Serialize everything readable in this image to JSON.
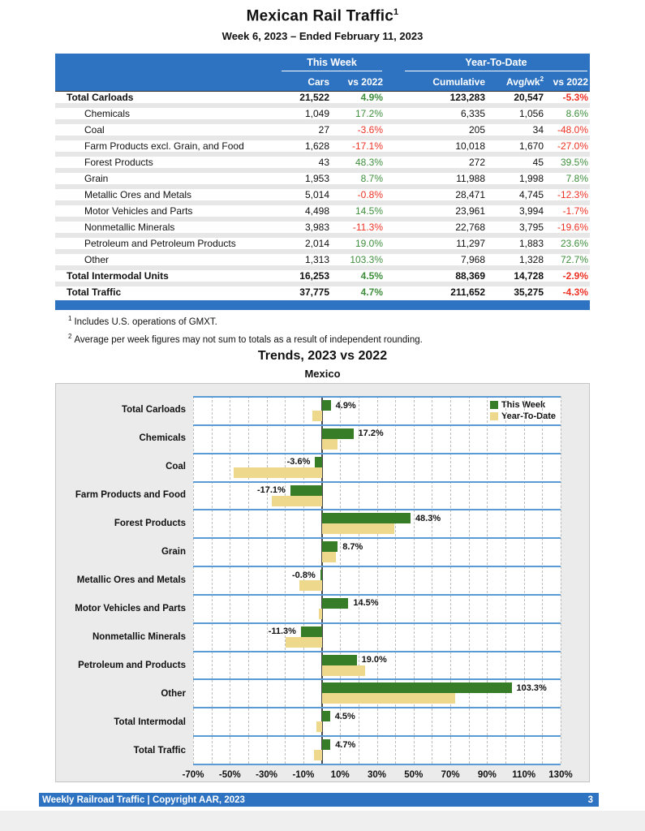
{
  "header": {
    "title": "Mexican Rail Traffic",
    "title_sup": "1",
    "subtitle": "Week 6, 2023 – Ended February 11, 2023"
  },
  "table": {
    "group_headers": {
      "this_week": "This Week",
      "ytd": "Year-To-Date"
    },
    "columns": {
      "cars": "Cars",
      "tw_vs": "vs 2022",
      "cumulative": "Cumulative",
      "avgwk": "Avg/wk",
      "avgwk_sup": "2",
      "ytd_vs": "vs 2022"
    },
    "rows": [
      {
        "label": "Total Carloads",
        "bold": true,
        "indent": false,
        "cars": "21,522",
        "tw_pct": "4.9%",
        "cumulative": "123,283",
        "avgwk": "20,547",
        "ytd_pct": "-5.3%"
      },
      {
        "label": "Chemicals",
        "bold": false,
        "indent": true,
        "cars": "1,049",
        "tw_pct": "17.2%",
        "cumulative": "6,335",
        "avgwk": "1,056",
        "ytd_pct": "8.6%"
      },
      {
        "label": "Coal",
        "bold": false,
        "indent": true,
        "cars": "27",
        "tw_pct": "-3.6%",
        "cumulative": "205",
        "avgwk": "34",
        "ytd_pct": "-48.0%"
      },
      {
        "label": "Farm Products excl. Grain, and Food",
        "bold": false,
        "indent": true,
        "cars": "1,628",
        "tw_pct": "-17.1%",
        "cumulative": "10,018",
        "avgwk": "1,670",
        "ytd_pct": "-27.0%"
      },
      {
        "label": "Forest Products",
        "bold": false,
        "indent": true,
        "cars": "43",
        "tw_pct": "48.3%",
        "cumulative": "272",
        "avgwk": "45",
        "ytd_pct": "39.5%"
      },
      {
        "label": "Grain",
        "bold": false,
        "indent": true,
        "cars": "1,953",
        "tw_pct": "8.7%",
        "cumulative": "11,988",
        "avgwk": "1,998",
        "ytd_pct": "7.8%"
      },
      {
        "label": "Metallic Ores and Metals",
        "bold": false,
        "indent": true,
        "cars": "5,014",
        "tw_pct": "-0.8%",
        "cumulative": "28,471",
        "avgwk": "4,745",
        "ytd_pct": "-12.3%"
      },
      {
        "label": "Motor Vehicles and Parts",
        "bold": false,
        "indent": true,
        "cars": "4,498",
        "tw_pct": "14.5%",
        "cumulative": "23,961",
        "avgwk": "3,994",
        "ytd_pct": "-1.7%"
      },
      {
        "label": "Nonmetallic Minerals",
        "bold": false,
        "indent": true,
        "cars": "3,983",
        "tw_pct": "-11.3%",
        "cumulative": "22,768",
        "avgwk": "3,795",
        "ytd_pct": "-19.6%"
      },
      {
        "label": "Petroleum and Petroleum Products",
        "bold": false,
        "indent": true,
        "cars": "2,014",
        "tw_pct": "19.0%",
        "cumulative": "11,297",
        "avgwk": "1,883",
        "ytd_pct": "23.6%"
      },
      {
        "label": "Other",
        "bold": false,
        "indent": true,
        "cars": "1,313",
        "tw_pct": "103.3%",
        "cumulative": "7,968",
        "avgwk": "1,328",
        "ytd_pct": "72.7%"
      },
      {
        "label": "Total Intermodal Units",
        "bold": true,
        "indent": false,
        "cars": "16,253",
        "tw_pct": "4.5%",
        "cumulative": "88,369",
        "avgwk": "14,728",
        "ytd_pct": "-2.9%"
      },
      {
        "label": "Total Traffic",
        "bold": true,
        "indent": false,
        "cars": "37,775",
        "tw_pct": "4.7%",
        "cumulative": "211,652",
        "avgwk": "35,275",
        "ytd_pct": "-4.3%"
      }
    ]
  },
  "footnotes": [
    {
      "sup": "1",
      "text": "Includes U.S. operations of GMXT."
    },
    {
      "sup": "2",
      "text": "Average per week figures may not sum to totals as a result of independent rounding."
    }
  ],
  "chart_data": {
    "type": "bar",
    "orientation": "horizontal",
    "title": "Trends, 2023 vs 2022",
    "subtitle": "Mexico",
    "categories": [
      "Total Carloads",
      "Chemicals",
      "Coal",
      "Farm Products and Food",
      "Forest Products",
      "Grain",
      "Metallic Ores and Metals",
      "Motor Vehicles and Parts",
      "Nonmetallic Minerals",
      "Petroleum and Products",
      "Other",
      "Total Intermodal",
      "Total Traffic"
    ],
    "series": [
      {
        "name": "This Week",
        "color": "#377C26",
        "values": [
          4.9,
          17.2,
          -3.6,
          -17.1,
          48.3,
          8.7,
          -0.8,
          14.5,
          -11.3,
          19.0,
          103.3,
          4.5,
          4.7
        ],
        "labels": [
          "4.9%",
          "17.2%",
          "-3.6%",
          "-17.1%",
          "48.3%",
          "8.7%",
          "-0.8%",
          "14.5%",
          "-11.3%",
          "19.0%",
          "103.3%",
          "4.5%",
          "4.7%"
        ]
      },
      {
        "name": "Year-To-Date",
        "color": "#EDD88C",
        "values": [
          -5.3,
          8.6,
          -48.0,
          -27.0,
          39.5,
          7.8,
          -12.3,
          -1.7,
          -19.6,
          23.6,
          72.7,
          -2.9,
          -4.3
        ]
      }
    ],
    "xlim": [
      -70,
      130
    ],
    "tick_values": [
      -70,
      -50,
      -30,
      -10,
      10,
      30,
      50,
      70,
      90,
      110,
      130
    ],
    "tick_labels": [
      "-70%",
      "-50%",
      "-30%",
      "-10%",
      "10%",
      "30%",
      "50%",
      "70%",
      "90%",
      "110%",
      "130%"
    ],
    "gridline_step": 10,
    "grid": true,
    "legend_position": "top-right"
  },
  "footer": {
    "text": "Weekly Railroad Traffic | Copyright AAR, 2023",
    "page": "3"
  },
  "colors": {
    "header_blue": "#2E73C2",
    "band_line_blue": "#5B9BD5",
    "this_week_green": "#377C26",
    "ytd_tan": "#EDD88C",
    "positive_green": "#3E8E3C",
    "negative_red": "#EE3124"
  }
}
